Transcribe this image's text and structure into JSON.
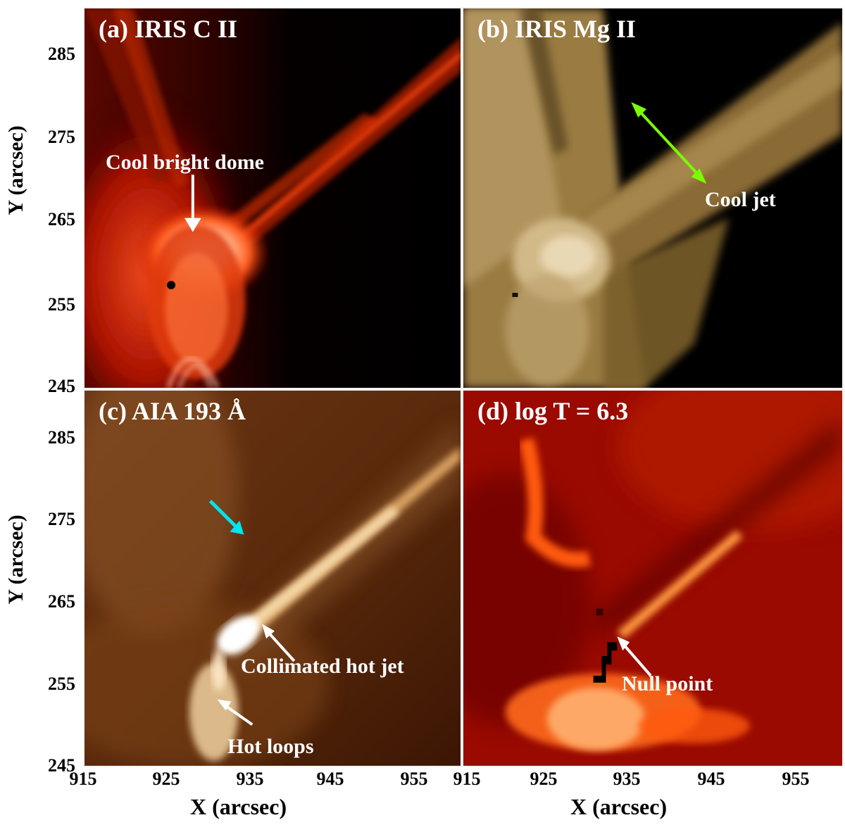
{
  "panels": [
    {
      "title": "(a) IRIS C II",
      "annotations": [
        "Cool bright dome"
      ]
    },
    {
      "title": "(b) IRIS Mg II",
      "annotations": [
        "Cool jet"
      ]
    },
    {
      "title": "(c) AIA 193 Å",
      "annotations": [
        "Collimated hot jet",
        "Hot loops"
      ]
    },
    {
      "title": "(d) log T = 6.3",
      "annotations": [
        "Null point"
      ]
    }
  ],
  "axes": {
    "y_label": "Y (arcsec)",
    "x_label": "X (arcsec)",
    "y_ticks": [
      "285",
      "275",
      "265",
      "255",
      "245"
    ],
    "x_ticks": [
      "915",
      "925",
      "935",
      "945",
      "955"
    ]
  },
  "colors": {
    "arrow_white": "#ffffff",
    "arrow_green": "#7cfc00",
    "arrow_cyan": "#00e5ee",
    "frame": "#f2f2f2"
  }
}
